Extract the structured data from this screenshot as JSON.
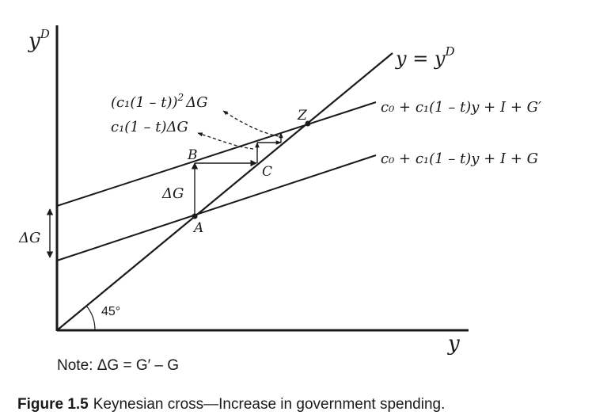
{
  "axes": {
    "y_axis_label": "y",
    "y_axis_label_sup": "D",
    "x_axis_label": "y"
  },
  "lines": {
    "diagonal_label": "y = y",
    "diagonal_label_sup": "D",
    "upper_label": "c₀ + c₁(1 – t)y + I + G′",
    "lower_label": "c₀ + c₁(1 – t)y + I + G"
  },
  "points": {
    "A": "A",
    "B": "B",
    "C": "C",
    "Z": "Z"
  },
  "annotations": {
    "delta_g_step": "ΔG",
    "delta_g_intercept": "ΔG",
    "multiplier_first": "c₁(1 – t)ΔG",
    "multiplier_second_base": "(c₁(1 – t))",
    "multiplier_second_exp": "2",
    "multiplier_second_tail": "ΔG",
    "angle": "45°"
  },
  "note": "Note: ΔG = G′ – G",
  "caption": {
    "label": "Figure 1.5",
    "text": "Keynesian cross—Increase in government spending."
  },
  "colors": {
    "ink": "#1a1a1a",
    "background": "#ffffff"
  }
}
